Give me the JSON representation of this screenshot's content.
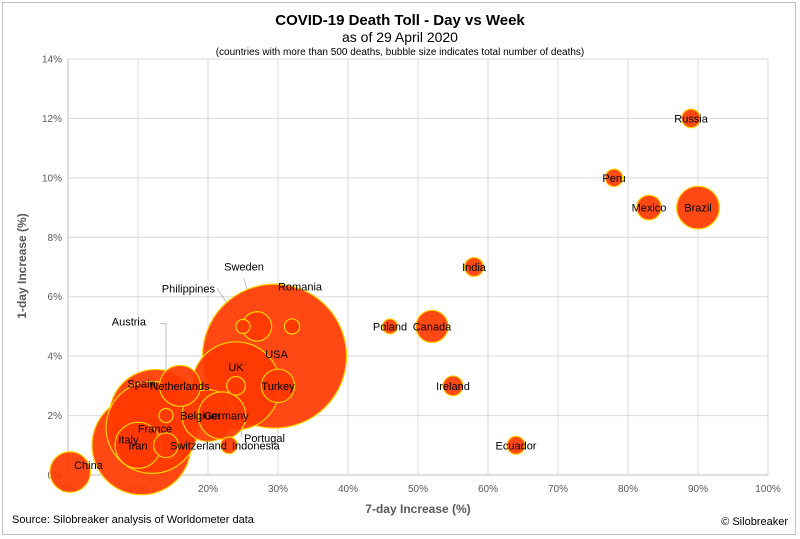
{
  "chart_data": {
    "type": "scatter",
    "title": "COVID-19 Death Toll - Day vs Week",
    "subtitle": "as of 29 April 2020",
    "note": "(countries with more than 500 deaths, bubble size indicates total number of deaths)",
    "xlabel": "7-day Increase (%)",
    "ylabel": "1-day Increase (%)",
    "xlim": [
      0,
      100
    ],
    "ylim": [
      0,
      14
    ],
    "x_ticks": [
      "0%",
      "10%",
      "20%",
      "30%",
      "40%",
      "50%",
      "60%",
      "70%",
      "80%",
      "90%",
      "100%"
    ],
    "y_ticks": [
      "0%",
      "2%",
      "4%",
      "6%",
      "8%",
      "10%",
      "12%",
      "14%"
    ],
    "grid": true,
    "colors": {
      "fill": "#ff3a00",
      "stroke": "#ffd200",
      "grid": "#d9d9d9",
      "leader": "#bfbfbf"
    },
    "points": [
      {
        "label": "USA",
        "x": 29.5,
        "y": 4.0,
        "deaths": 58000
      },
      {
        "label": "Italy",
        "x": 10.5,
        "y": 1.0,
        "deaths": 27400
      },
      {
        "label": "Spain",
        "x": 12.5,
        "y": 2.0,
        "deaths": 23800
      },
      {
        "label": "France",
        "x": 12.0,
        "y": 1.6,
        "deaths": 23600
      },
      {
        "label": "UK",
        "x": 24.0,
        "y": 3.0,
        "deaths": 21700
      },
      {
        "label": "Belgium",
        "x": 20.0,
        "y": 2.0,
        "deaths": 7500
      },
      {
        "label": "Germany",
        "x": 22.0,
        "y": 2.0,
        "deaths": 6300
      },
      {
        "label": "Iran",
        "x": 10.0,
        "y": 1.0,
        "deaths": 5900
      },
      {
        "label": "Netherlands",
        "x": 16.0,
        "y": 3.0,
        "deaths": 4700
      },
      {
        "label": "China",
        "x": 0.3,
        "y": 0.1,
        "deaths": 4600
      },
      {
        "label": "Brazil",
        "x": 90.0,
        "y": 9.0,
        "deaths": 5100
      },
      {
        "label": "Turkey",
        "x": 30.0,
        "y": 3.0,
        "deaths": 3100
      },
      {
        "label": "Canada",
        "x": 52.0,
        "y": 5.0,
        "deaths": 2900
      },
      {
        "label": "Sweden",
        "x": 27.0,
        "y": 5.0,
        "deaths": 2400
      },
      {
        "label": "Switzerland",
        "x": 14.0,
        "y": 1.0,
        "deaths": 1700
      },
      {
        "label": "Mexico",
        "x": 83.0,
        "y": 9.0,
        "deaths": 1700
      },
      {
        "label": "Ireland",
        "x": 55.0,
        "y": 3.0,
        "deaths": 1100
      },
      {
        "label": "Portugal",
        "x": 24.0,
        "y": 3.0,
        "deaths": 970
      },
      {
        "label": "India",
        "x": 58.0,
        "y": 7.0,
        "deaths": 1000
      },
      {
        "label": "Russia",
        "x": 89.0,
        "y": 12.0,
        "deaths": 970
      },
      {
        "label": "Peru",
        "x": 78.0,
        "y": 10.0,
        "deaths": 850
      },
      {
        "label": "Ecuador",
        "x": 64.0,
        "y": 1.0,
        "deaths": 900
      },
      {
        "label": "Indonesia",
        "x": 23.0,
        "y": 1.0,
        "deaths": 770
      },
      {
        "label": "Austria",
        "x": 14.0,
        "y": 2.0,
        "deaths": 560
      },
      {
        "label": "Poland",
        "x": 46.0,
        "y": 5.0,
        "deaths": 620
      },
      {
        "label": "Romania",
        "x": 32.0,
        "y": 5.0,
        "deaths": 650
      },
      {
        "label": "Philippines",
        "x": 25.0,
        "y": 5.0,
        "deaths": 560
      }
    ]
  },
  "footer": {
    "source": "Source: Silobreaker analysis of Worldometer data",
    "credit": "© Silobreaker"
  }
}
